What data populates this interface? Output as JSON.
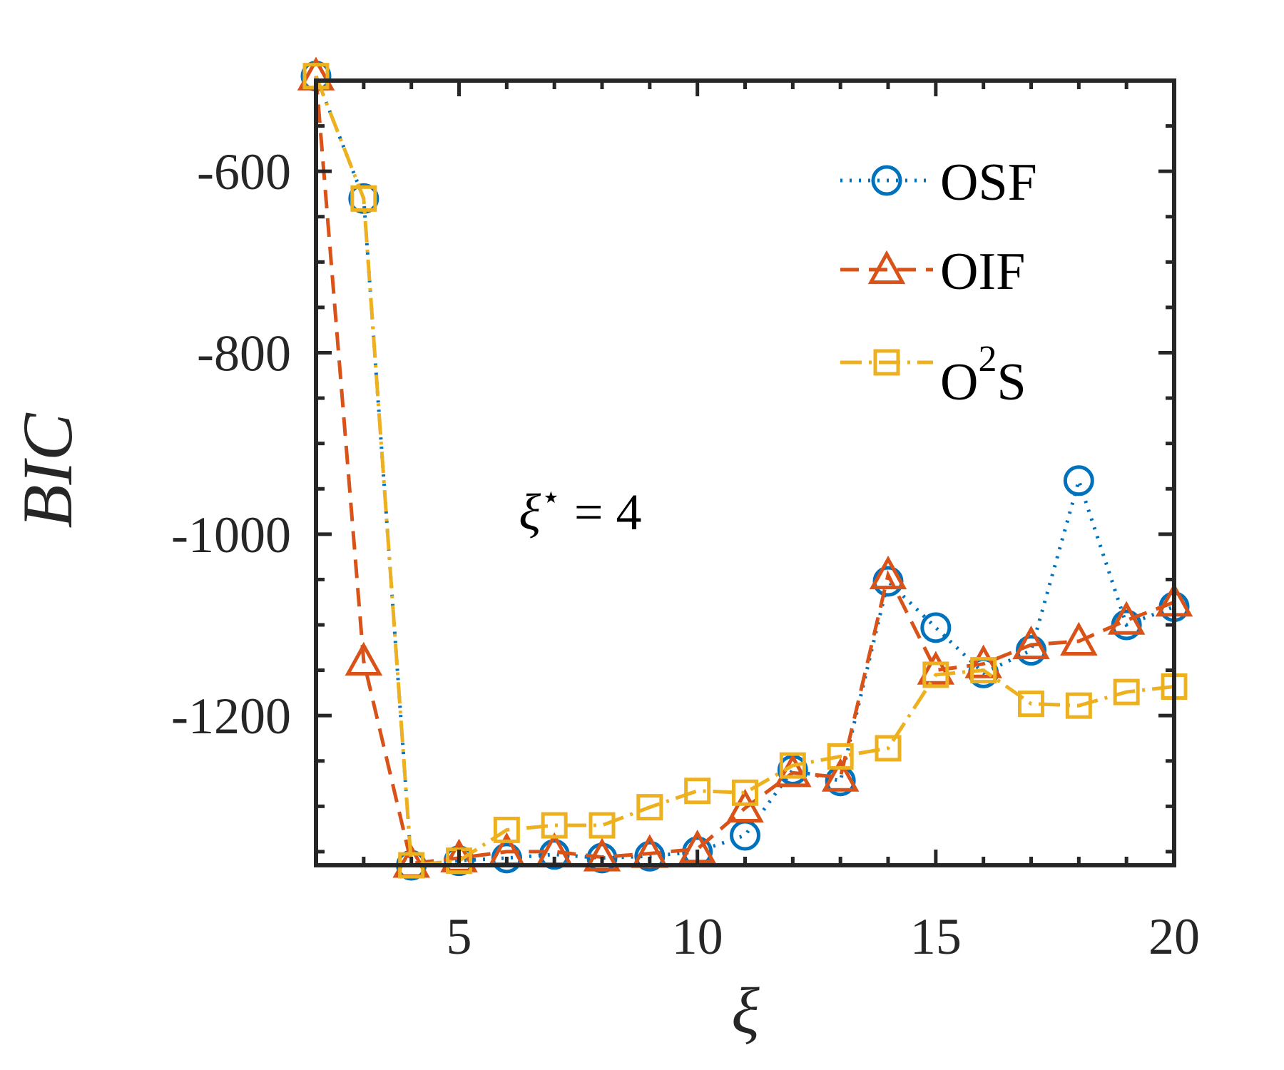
{
  "chart_data": {
    "type": "line",
    "title": "",
    "xlabel": "ξ",
    "ylabel": "BIC",
    "xlim": [
      2,
      20
    ],
    "ylim": [
      -1365,
      -500
    ],
    "xticks": [
      5,
      10,
      15,
      20
    ],
    "yticks": [
      -600,
      -800,
      -1000,
      -1200
    ],
    "x_tick_labels": [
      "5",
      "10",
      "15",
      "20"
    ],
    "y_tick_labels": [
      "-600",
      "-800",
      "-1000",
      "-1200"
    ],
    "grid": false,
    "legend_position": "top-right",
    "annotation": {
      "symbol": "ξ",
      "superscript": "⋆",
      "text": " = 4",
      "x": 7.3,
      "y": -975
    },
    "series": [
      {
        "name": "OSF",
        "color": "#0072BD",
        "marker": "circle",
        "line_style": "dotted",
        "x": [
          2,
          3,
          4,
          5,
          6,
          7,
          8,
          9,
          10,
          11,
          12,
          13,
          14,
          15,
          16,
          17,
          18,
          19,
          20
        ],
        "y": [
          -495,
          -630,
          -1365,
          -1360,
          -1357,
          -1353,
          -1357,
          -1355,
          -1350,
          -1332,
          -1260,
          -1272,
          -1052,
          -1103,
          -1153,
          -1128,
          -941,
          -1100,
          -1080
        ]
      },
      {
        "name": "OIF",
        "color": "#D95319",
        "marker": "triangle",
        "line_style": "dashed",
        "x": [
          2,
          3,
          4,
          5,
          6,
          7,
          8,
          9,
          10,
          11,
          12,
          13,
          14,
          15,
          16,
          17,
          18,
          19,
          20
        ],
        "y": [
          -495,
          -1140,
          -1363,
          -1357,
          -1350,
          -1350,
          -1356,
          -1352,
          -1347,
          -1302,
          -1263,
          -1268,
          -1045,
          -1150,
          -1143,
          -1122,
          -1118,
          -1095,
          -1075
        ]
      },
      {
        "name": "O²S",
        "color": "#EDB120",
        "marker": "square",
        "line_style": "dashdot",
        "x": [
          2,
          3,
          4,
          5,
          6,
          7,
          8,
          9,
          10,
          11,
          12,
          13,
          14,
          15,
          16,
          17,
          18,
          19,
          20
        ],
        "y": [
          -495,
          -630,
          -1365,
          -1360,
          -1326,
          -1321,
          -1321,
          -1301,
          -1283,
          -1285,
          -1255,
          -1245,
          -1236,
          -1155,
          -1150,
          -1187,
          -1189,
          -1174,
          -1168
        ]
      }
    ]
  },
  "legend": {
    "items": [
      {
        "label_main": "OSF",
        "label_sup": "",
        "label_tail": ""
      },
      {
        "label_main": "OIF",
        "label_sup": "",
        "label_tail": ""
      },
      {
        "label_main": "O",
        "label_sup": "2",
        "label_tail": "S"
      }
    ]
  }
}
